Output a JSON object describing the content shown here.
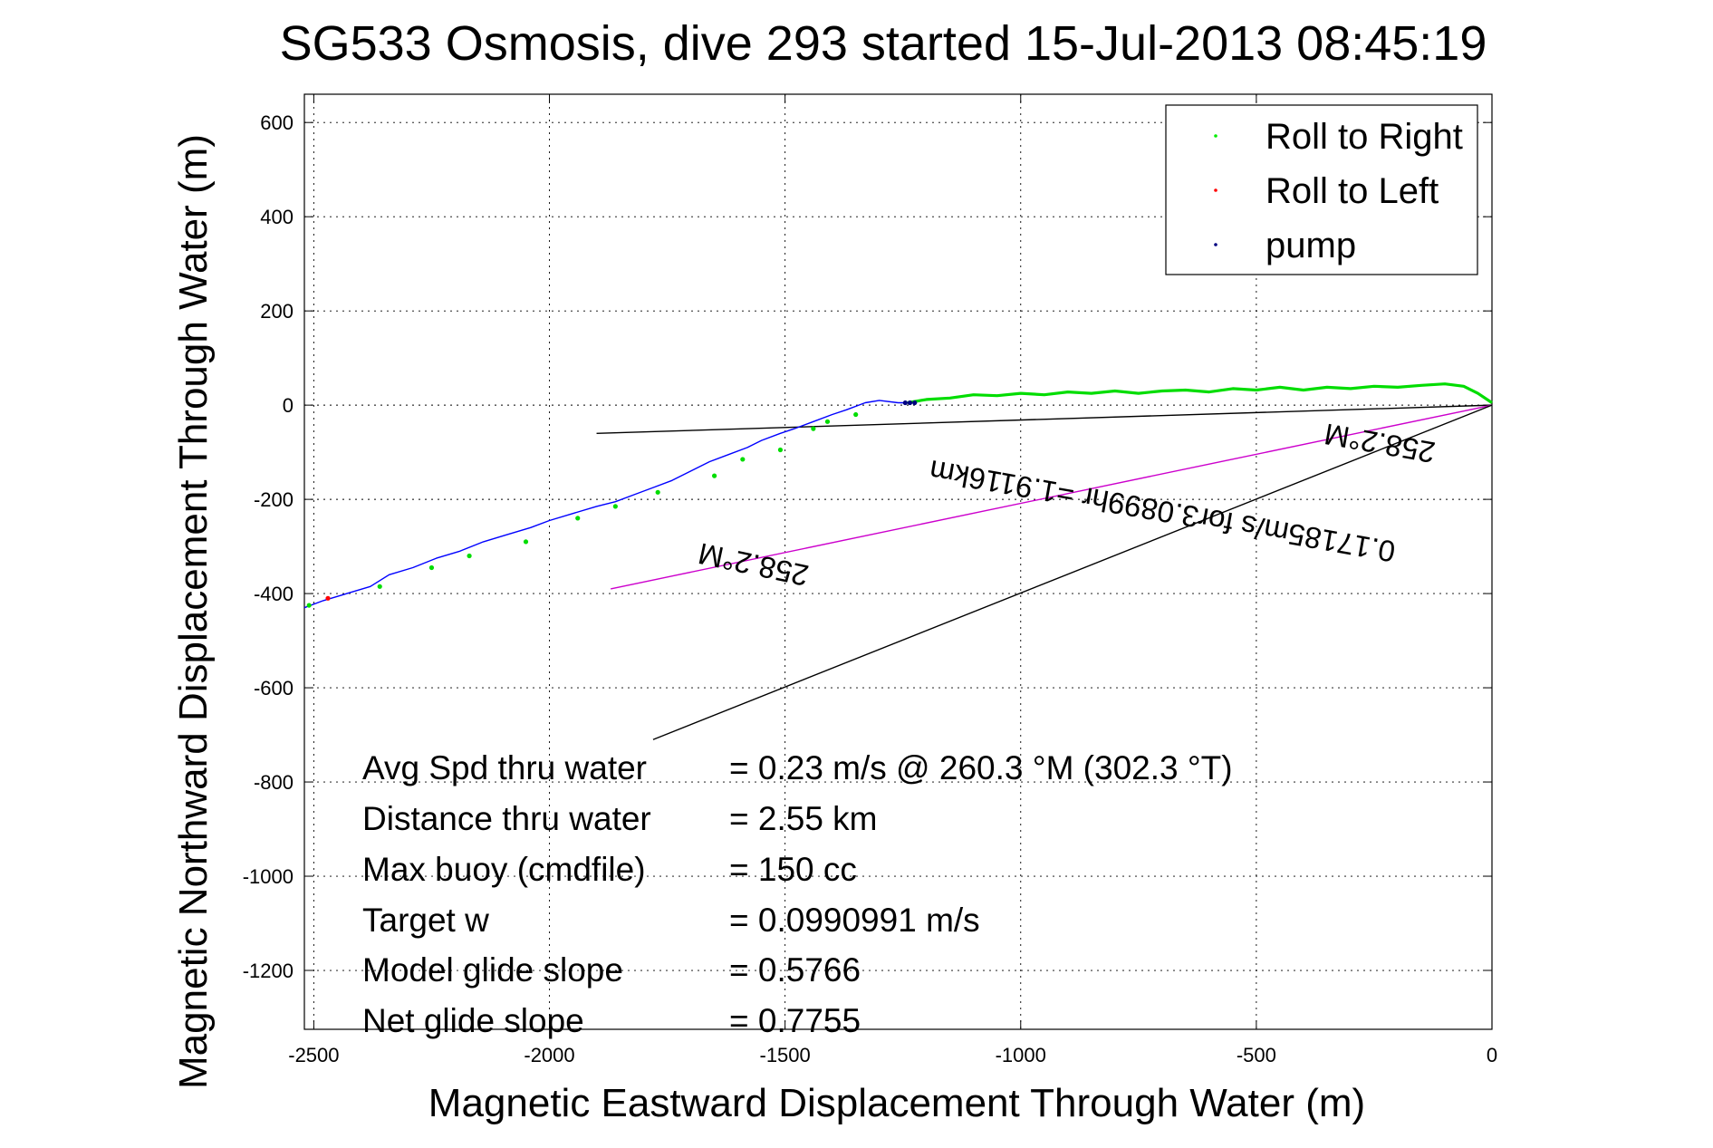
{
  "chart_data": {
    "type": "line",
    "title": "SG533 Osmosis, dive 293 started 15-Jul-2013 08:45:19",
    "xlabel": "Magnetic Eastward Displacement Through Water (m)",
    "ylabel": "Magnetic Northward Displacement Through Water (m)",
    "xlim": [
      -2520,
      0
    ],
    "ylim": [
      -1325,
      660
    ],
    "xticks": [
      -2500,
      -2000,
      -1500,
      -1000,
      -500,
      0
    ],
    "yticks": [
      600,
      400,
      200,
      0,
      -200,
      -400,
      -600,
      -800,
      -1000,
      -1200
    ],
    "xtick_labels": [
      "-2500",
      "-2000",
      "-1500",
      "-1000",
      "-500",
      "0"
    ],
    "ytick_labels": [
      "600",
      "400",
      "200",
      "0",
      "-200",
      "-400",
      "-600",
      "-800",
      "-1000",
      "-1200"
    ],
    "grid": true,
    "legend_position": "top-right",
    "legend": [
      {
        "label": "Roll to Right",
        "color": "#00ee00"
      },
      {
        "label": "Roll to Left",
        "color": "#ff0000"
      },
      {
        "label": "pump",
        "color": "#000080"
      }
    ],
    "series": [
      {
        "color": "#0000ff",
        "x": [
          -2520,
          -2480,
          -2430,
          -2380,
          -2340,
          -2290,
          -2240,
          -2190,
          -2140,
          -2090,
          -2040,
          -2000,
          -1950,
          -1900,
          -1860,
          -1820,
          -1780,
          -1740,
          -1700,
          -1660,
          -1620,
          -1580,
          -1550,
          -1510,
          -1480,
          -1440,
          -1400,
          -1370,
          -1330,
          -1300,
          -1260,
          -1230
        ],
        "y": [
          -430,
          -415,
          -400,
          -385,
          -360,
          -345,
          -325,
          -310,
          -290,
          -275,
          -260,
          -245,
          -230,
          -215,
          -205,
          -190,
          -175,
          -160,
          -140,
          -120,
          -105,
          -90,
          -75,
          -60,
          -50,
          -35,
          -20,
          -10,
          5,
          10,
          5,
          5
        ]
      },
      {
        "name": "Roll to Right",
        "color": "#00dd00",
        "x": [
          -1240,
          -1200,
          -1150,
          -1100,
          -1050,
          -1000,
          -950,
          -900,
          -850,
          -800,
          -750,
          -700,
          -650,
          -600,
          -550,
          -500,
          -450,
          -400,
          -350,
          -300,
          -250,
          -200,
          -150,
          -100,
          -60,
          -30,
          0
        ],
        "y": [
          5,
          12,
          15,
          22,
          20,
          25,
          22,
          28,
          25,
          30,
          25,
          30,
          32,
          28,
          35,
          32,
          38,
          32,
          38,
          35,
          40,
          38,
          42,
          45,
          40,
          25,
          5
        ]
      }
    ],
    "markers": {
      "roll_right": {
        "x": [
          -2510,
          -2360,
          -2250,
          -2170,
          -2050,
          -1940,
          -1860,
          -1770,
          -1650,
          -1590,
          -1510,
          -1440,
          -1410,
          -1350
        ],
        "y": [
          -425,
          -385,
          -345,
          -320,
          -290,
          -240,
          -215,
          -185,
          -150,
          -115,
          -95,
          -50,
          -35,
          -20
        ]
      },
      "roll_left": {
        "x": [
          -2470
        ],
        "y": [
          -410
        ]
      },
      "pump": {
        "x": [
          -1245,
          -1235,
          -1225
        ],
        "y": [
          5,
          5,
          5
        ]
      }
    },
    "lines": [
      {
        "color": "#000000",
        "x": [
          -1900,
          0
        ],
        "y": [
          -60,
          0
        ]
      },
      {
        "color": "#cc00cc",
        "x": [
          -1870,
          0
        ],
        "y": [
          -390,
          0
        ]
      },
      {
        "color": "#000000",
        "x": [
          -1780,
          0
        ],
        "y": [
          -710,
          0
        ]
      }
    ],
    "annotations": {
      "heading_top": "258.2°M",
      "heading_mid": "258.2°M",
      "current_text": "0.17185m/s for3.0899hr =1.9116km"
    },
    "stats": [
      {
        "label": "Avg Spd thru water",
        "value": "=  0.23 m/s @ 260.3 °M (302.3 °T)"
      },
      {
        "label": "Distance thru water",
        "value": "=  2.55 km"
      },
      {
        "label": "Max buoy (cmdfile)",
        "value": "= 150 cc"
      },
      {
        "label": "Target w",
        "value": "= 0.0990991 m/s"
      },
      {
        "label": "Model glide slope",
        "value": "= 0.5766"
      },
      {
        "label": "Net glide slope",
        "value": "= 0.7755"
      }
    ]
  }
}
